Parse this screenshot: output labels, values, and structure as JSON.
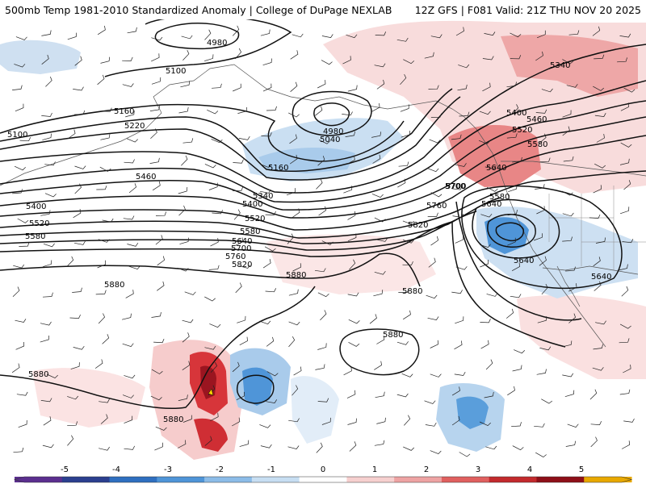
{
  "header": {
    "title_left": "500mb Temp 1981-2010 Standardized Anomaly | College of DuPage NEXLAB",
    "title_right": "12Z GFS | F081 Valid: 21Z THU NOV 20 2025"
  },
  "legend": {
    "ticks": [
      "-5",
      "-4",
      "-3",
      "-2",
      "-1",
      "0",
      "1",
      "2",
      "3",
      "4",
      "5"
    ],
    "colors": [
      "#5b2f8f",
      "#2b3f8f",
      "#2f6fc0",
      "#4f95d8",
      "#8cbce8",
      "#c7def2",
      "#ffffff",
      "#f6d0cf",
      "#eea3a3",
      "#e0605f",
      "#c32a2d",
      "#8e0f18",
      "#e8a800"
    ]
  },
  "contours": {
    "labels": [
      "4980",
      "5100",
      "5160",
      "5220",
      "5100",
      "5460",
      "5400",
      "5520",
      "5580",
      "5700",
      "5640",
      "5760",
      "5820",
      "5880",
      "4980",
      "5040",
      "5160",
      "5340",
      "5400",
      "5520",
      "5580",
      "5640",
      "5700",
      "5760",
      "5820",
      "5880",
      "5880",
      "5880",
      "5880",
      "5880",
      "5340",
      "5400",
      "5460",
      "5520",
      "5580",
      "5640",
      "5700",
      "5640",
      "5580",
      "5640"
    ]
  }
}
